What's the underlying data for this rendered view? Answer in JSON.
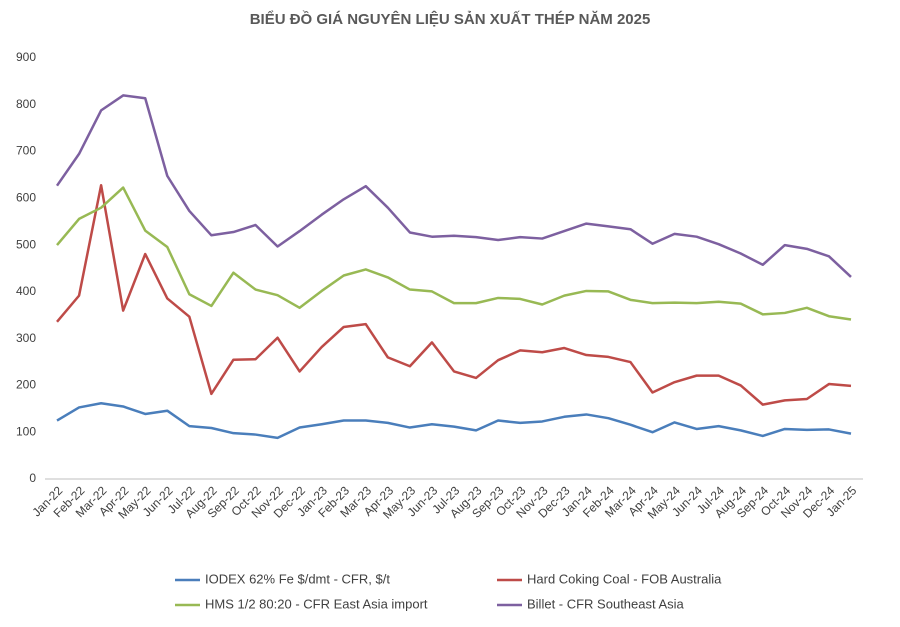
{
  "chart_data": {
    "type": "line",
    "title": "BIỂU ĐỒ GIÁ NGUYÊN LIỆU SẢN XUẤT THÉP NĂM 2025",
    "categories": [
      "Jan-22",
      "Feb-22",
      "Mar-22",
      "Apr-22",
      "May-22",
      "Jun-22",
      "Jul-22",
      "Aug-22",
      "Sep-22",
      "Oct-22",
      "Nov-22",
      "Dec-22",
      "Jan-23",
      "Feb-23",
      "Mar-23",
      "Apr-23",
      "May-23",
      "Jun-23",
      "Jul-23",
      "Aug-23",
      "Sep-23",
      "Oct-23",
      "Nov-23",
      "Dec-23",
      "Jan-24",
      "Feb-24",
      "Mar-24",
      "Apr-24",
      "May-24",
      "Jun-24",
      "Jul-24",
      "Aug-24",
      "Sep-24",
      "Oct-24",
      "Nov-24",
      "Dec-24",
      "Jan-25"
    ],
    "series": [
      {
        "name": "IODEX 62% Fe $/dmt - CFR, $/t",
        "color": "#4a7ebb",
        "values": [
          125,
          153,
          162,
          155,
          139,
          146,
          113,
          109,
          98,
          95,
          88,
          110,
          117,
          125,
          125,
          120,
          110,
          117,
          112,
          104,
          125,
          120,
          123,
          133,
          138,
          130,
          116,
          100,
          121,
          107,
          113,
          104,
          92,
          107,
          105,
          106,
          97
        ]
      },
      {
        "name": "Hard Coking Coal - FOB Australia",
        "color": "#be4b48",
        "values": [
          336,
          392,
          628,
          360,
          481,
          386,
          347,
          182,
          255,
          256,
          302,
          230,
          282,
          325,
          331,
          260,
          241,
          292,
          230,
          216,
          254,
          275,
          271,
          280,
          265,
          261,
          250,
          185,
          207,
          221,
          221,
          200,
          159,
          168,
          171,
          203,
          199
        ]
      },
      {
        "name": "HMS 1/2 80:20 - CFR East Asia import",
        "color": "#98b954",
        "values": [
          500,
          556,
          580,
          623,
          531,
          496,
          395,
          370,
          441,
          405,
          393,
          366,
          402,
          435,
          448,
          431,
          405,
          401,
          376,
          376,
          387,
          385,
          373,
          392,
          402,
          401,
          383,
          376,
          377,
          376,
          379,
          375,
          352,
          355,
          366,
          348,
          341
        ]
      },
      {
        "name": "Billet - CFR Southeast Asia",
        "color": "#7d60a0",
        "values": [
          627,
          695,
          788,
          820,
          814,
          648,
          573,
          521,
          528,
          543,
          497,
          530,
          565,
          598,
          626,
          580,
          527,
          518,
          520,
          517,
          511,
          517,
          514,
          530,
          546,
          540,
          534,
          503,
          524,
          518,
          502,
          482,
          458,
          500,
          492,
          476,
          432
        ]
      }
    ],
    "ylim": [
      0,
      900
    ],
    "yticks": [
      0,
      100,
      200,
      300,
      400,
      500,
      600,
      700,
      800,
      900
    ],
    "grid": false
  }
}
